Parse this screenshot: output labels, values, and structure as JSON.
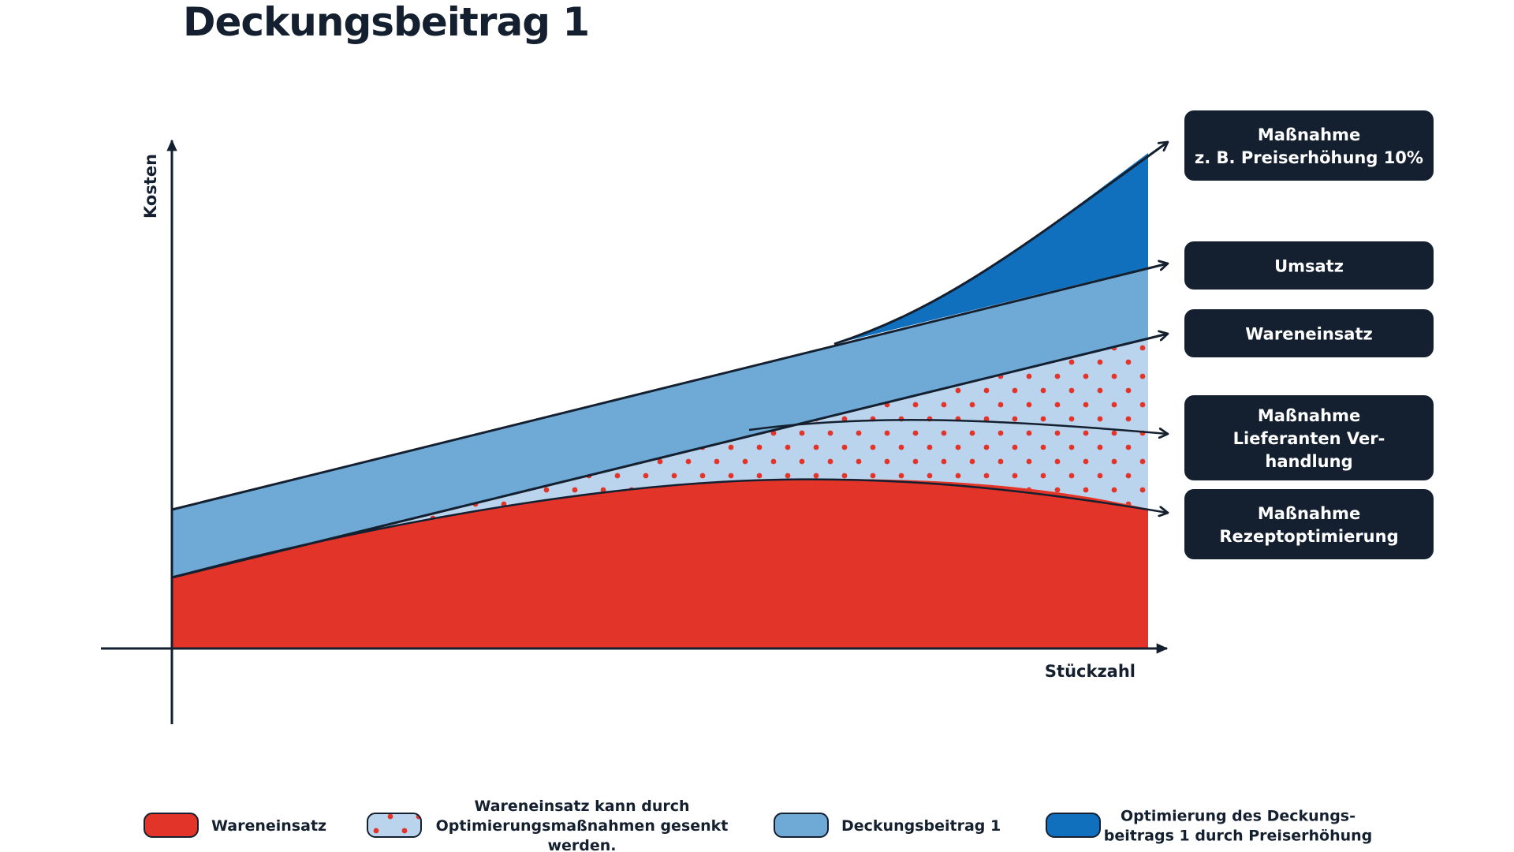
{
  "title": "Deckungsbeitrag 1",
  "axes": {
    "y_label": "Kosten",
    "x_label": "Stückzahl"
  },
  "boxes": [
    {
      "lines": [
        "Maßnahme",
        "z. B. Preiserhöhung 10%"
      ]
    },
    {
      "lines": [
        "Umsatz"
      ]
    },
    {
      "lines": [
        "Wareneinsatz"
      ]
    },
    {
      "lines": [
        "Maßnahme",
        "Lieferanten Ver-",
        "handlung"
      ]
    },
    {
      "lines": [
        "Maßnahme",
        "Rezeptoptimierung"
      ]
    }
  ],
  "legend": [
    {
      "lines": [
        "Wareneinsatz"
      ],
      "swatch": "red"
    },
    {
      "lines": [
        "Wareneinsatz kann durch",
        "Optimierungsmaßnahmen gesenkt",
        "werden."
      ],
      "swatch": "dotted"
    },
    {
      "lines": [
        "Deckungsbeitrag 1"
      ],
      "swatch": "lightblue"
    },
    {
      "lines": [
        "Optimierung des Deckungs-",
        "beitrags 1 durch Preiserhöhung"
      ],
      "swatch": "darkblue"
    }
  ],
  "colors": {
    "red": "#e3342a",
    "light_blue": "#6fa9d6",
    "pale_blue": "#b9d4ec",
    "dark_blue": "#1070be",
    "navy": "#14202f",
    "dot": "#e3342a"
  }
}
